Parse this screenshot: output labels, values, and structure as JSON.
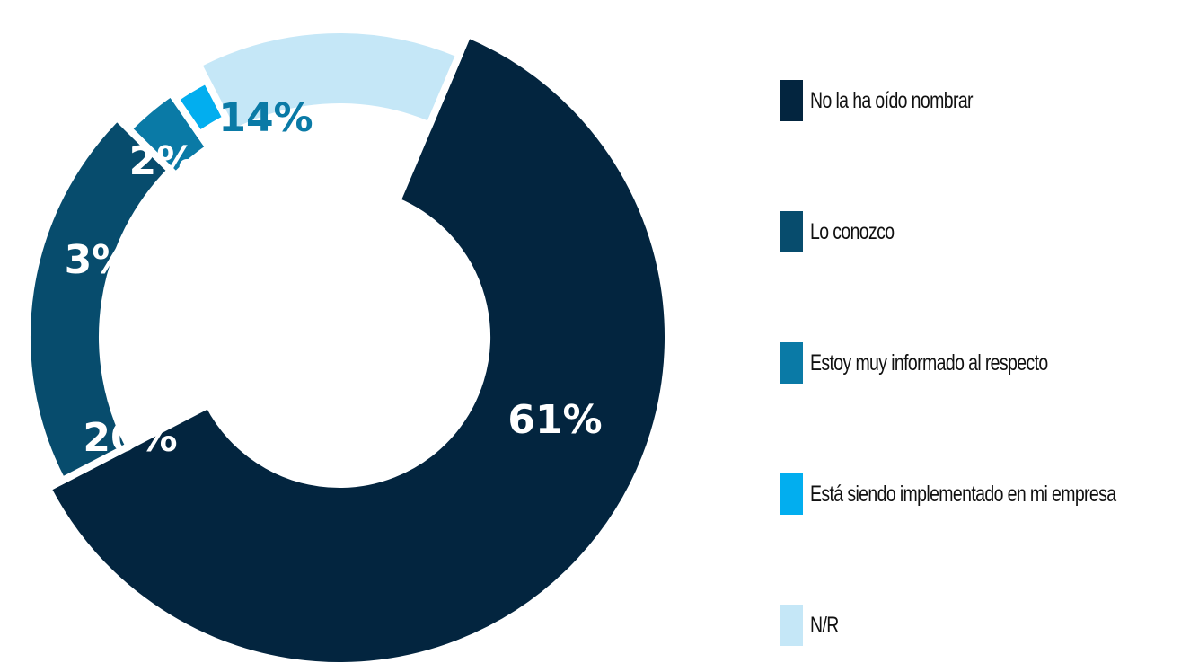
{
  "chart_data": {
    "type": "pie",
    "title": "",
    "categories": [
      "No la ha oído nombrar",
      "Lo conozco",
      "Estoy muy informado al respecto",
      "Está siendo implementado en mi empresa",
      "N/R"
    ],
    "values": [
      61,
      20,
      3,
      2,
      14
    ],
    "value_labels": [
      "61%",
      "20%",
      "3%",
      "2%",
      "14%"
    ],
    "colors": [
      "#03253f",
      "#074c6d",
      "#0a7aa6",
      "#02aeef",
      "#c5e7f7"
    ],
    "label_colors": [
      "#ffffff",
      "#ffffff",
      "#ffffff",
      "#ffffff",
      "#0a7aa6"
    ],
    "donut": true,
    "legend_position": "right"
  }
}
